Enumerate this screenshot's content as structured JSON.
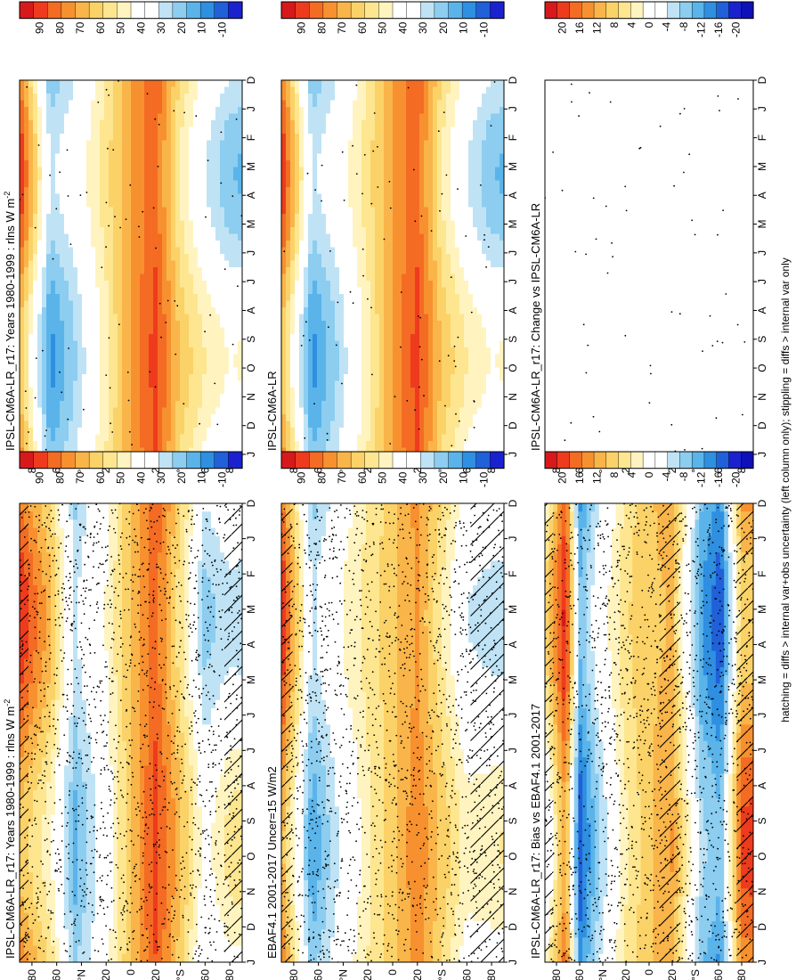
{
  "figure": {
    "caption": "hatching = diffs > internal var+obs uncertainty (left column only); stippling = diffs > internal var only"
  },
  "chart_data": [
    {
      "type": "heatmap",
      "id": "model-left",
      "title": "IPSL-CM6A-LR_r17: Years 1980-1999 : rlns W m",
      "title_sup": "-2",
      "x_ticks": [
        "D",
        "J",
        "F",
        "M",
        "A",
        "M",
        "J",
        "J",
        "A",
        "S",
        "O",
        "N",
        "D",
        "J"
      ],
      "y_ticks": [
        "80",
        "60",
        "°N",
        "20",
        "0",
        "20",
        "°S",
        "60",
        "80"
      ],
      "colorbar": {
        "labels": [
          "90",
          "80",
          "70",
          "60",
          "50",
          "40",
          "30",
          "20",
          "10",
          "-10"
        ],
        "scale": "abs"
      },
      "hatch_bands": [
        [
          0.0,
          0.04
        ],
        [
          0.92,
          1.0
        ]
      ],
      "stipple": "heavy",
      "field": {
        "lat_bands": [
          [
            -90,
            75
          ],
          [
            -65,
            55
          ],
          [
            -45,
            22
          ],
          [
            -20,
            40
          ],
          [
            0,
            62
          ],
          [
            20,
            82
          ],
          [
            40,
            58
          ],
          [
            60,
            30
          ],
          [
            80,
            40
          ]
        ],
        "seasonal_amp": 14
      }
    },
    {
      "type": "heatmap",
      "id": "model-right",
      "title": "IPSL-CM6A-LR_r17: Years 1980-1999 : rlns W m",
      "title_sup": "-2",
      "x_ticks": [
        "D",
        "J",
        "F",
        "M",
        "A",
        "M",
        "J",
        "J",
        "A",
        "S",
        "O",
        "N",
        "D",
        "J"
      ],
      "y_ticks": [
        "80",
        "60",
        "°N",
        "20",
        "0",
        "20",
        "°S",
        "60",
        "80"
      ],
      "colorbar": {
        "labels": [
          "90",
          "80",
          "70",
          "60",
          "50",
          "40",
          "30",
          "20",
          "10",
          "-10"
        ],
        "scale": "abs"
      },
      "stipple": "sparse",
      "field": {
        "lat_bands": [
          [
            -90,
            75
          ],
          [
            -65,
            18
          ],
          [
            -45,
            30
          ],
          [
            -20,
            50
          ],
          [
            0,
            70
          ],
          [
            20,
            82
          ],
          [
            40,
            55
          ],
          [
            60,
            40
          ],
          [
            80,
            30
          ]
        ],
        "seasonal_amp": 14
      }
    },
    {
      "type": "heatmap",
      "id": "obs-left",
      "title": "EBAF4.1 2001-2017 Uncer=15 W/m2",
      "title_sup": "",
      "x_ticks": [
        "D",
        "J",
        "F",
        "M",
        "A",
        "M",
        "J",
        "J",
        "A",
        "S",
        "O",
        "N",
        "D",
        "J"
      ],
      "y_ticks": [
        "80",
        "60",
        "°N",
        "20",
        "0",
        "20",
        "°S",
        "60",
        "80"
      ],
      "colorbar": {
        "labels": [
          "90",
          "80",
          "70",
          "60",
          "50",
          "40",
          "30",
          "20",
          "10",
          "-10"
        ],
        "scale": "abs"
      },
      "hatch_bands": [
        [
          0.0,
          0.05
        ],
        [
          0.85,
          1.0
        ]
      ],
      "stipple": "heavy",
      "field": {
        "lat_bands": [
          [
            -90,
            78
          ],
          [
            -65,
            20
          ],
          [
            -45,
            35
          ],
          [
            -20,
            50
          ],
          [
            0,
            60
          ],
          [
            20,
            72
          ],
          [
            40,
            55
          ],
          [
            60,
            38
          ],
          [
            80,
            38
          ]
        ],
        "seasonal_amp": 12
      }
    },
    {
      "type": "heatmap",
      "id": "model-ref",
      "title": "IPSL-CM6A-LR",
      "title_sup": "",
      "x_ticks": [
        "D",
        "J",
        "F",
        "M",
        "A",
        "M",
        "J",
        "J",
        "A",
        "S",
        "O",
        "N",
        "D",
        "J"
      ],
      "y_ticks": [
        "80",
        "60",
        "°N",
        "20",
        "0",
        "20",
        "°S",
        "60",
        "80"
      ],
      "colorbar": {
        "labels": [
          "90",
          "80",
          "70",
          "60",
          "50",
          "40",
          "30",
          "20",
          "10",
          "-10"
        ],
        "scale": "abs"
      },
      "stipple": "sparse",
      "field": {
        "lat_bands": [
          [
            -90,
            75
          ],
          [
            -65,
            18
          ],
          [
            -45,
            30
          ],
          [
            -20,
            50
          ],
          [
            0,
            70
          ],
          [
            20,
            82
          ],
          [
            40,
            55
          ],
          [
            60,
            40
          ],
          [
            80,
            30
          ]
        ],
        "seasonal_amp": 14
      }
    },
    {
      "type": "heatmap",
      "id": "bias",
      "title": "IPSL-CM6A-LR_r17: Bias vs EBAF4.1 2001-2017",
      "title_sup": "",
      "x_ticks": [
        "D",
        "J",
        "F",
        "M",
        "A",
        "M",
        "J",
        "J",
        "A",
        "S",
        "O",
        "N",
        "D",
        "J"
      ],
      "y_ticks": [
        "80",
        "60",
        "°N",
        "20",
        "0",
        "20",
        "°S",
        "60",
        "80"
      ],
      "colorbar": {
        "labels": [
          "20",
          "16",
          "12",
          "8",
          "4",
          "0",
          "-4",
          "-8",
          "-12",
          "-16",
          "-20"
        ],
        "scale": "diff"
      },
      "hatch_bands": [
        [
          0.0,
          0.04
        ],
        [
          0.55,
          0.65
        ],
        [
          0.92,
          1.0
        ]
      ],
      "stipple": "heavy",
      "field": {
        "lat_bands": [
          [
            -90,
            0
          ],
          [
            -72,
            16
          ],
          [
            -60,
            -14
          ],
          [
            -45,
            -6
          ],
          [
            -20,
            4
          ],
          [
            0,
            8
          ],
          [
            20,
            10
          ],
          [
            45,
            -10
          ],
          [
            62,
            -14
          ],
          [
            80,
            12
          ]
        ],
        "seasonal_amp": 6
      }
    },
    {
      "type": "heatmap",
      "id": "change",
      "title": "IPSL-CM6A-LR_r17: Change vs IPSL-CM6A-LR",
      "title_sup": "",
      "x_ticks": [
        "D",
        "J",
        "F",
        "M",
        "A",
        "M",
        "J",
        "J",
        "A",
        "S",
        "O",
        "N",
        "D",
        "J"
      ],
      "y_ticks": [
        "80",
        "60",
        "°N",
        "20",
        "0",
        "20",
        "°S",
        "60",
        "80"
      ],
      "colorbar": {
        "labels": [
          "20",
          "16",
          "12",
          "8",
          "4",
          "0",
          "-4",
          "-8",
          "-12",
          "-16",
          "-20"
        ],
        "scale": "diff"
      },
      "stipple": "very-sparse",
      "field": {
        "lat_bands": [
          [
            -90,
            0
          ],
          [
            90,
            0
          ]
        ],
        "seasonal_amp": 0
      }
    }
  ]
}
